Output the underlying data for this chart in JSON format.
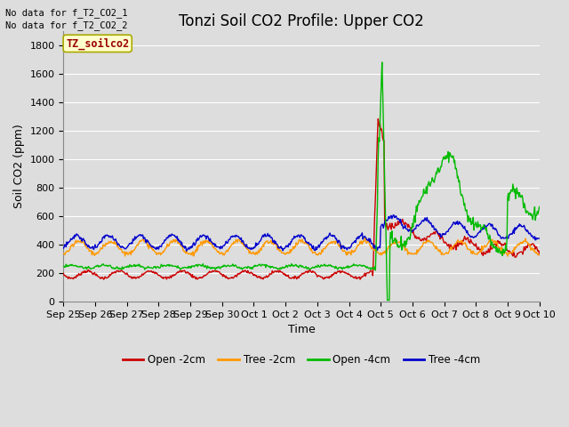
{
  "title": "Tonzi Soil CO2 Profile: Upper CO2",
  "xlabel": "Time",
  "ylabel": "Soil CO2 (ppm)",
  "ylim": [
    0,
    1900
  ],
  "yticks": [
    0,
    200,
    400,
    600,
    800,
    1000,
    1200,
    1400,
    1600,
    1800
  ],
  "no_data_text": [
    "No data for f_T2_CO2_1",
    "No data for f_T2_CO2_2"
  ],
  "legend_label": "TZ_soilco2",
  "legend_entries": [
    "Open -2cm",
    "Tree -2cm",
    "Open -4cm",
    "Tree -4cm"
  ],
  "legend_colors": [
    "#cc0000",
    "#ff9900",
    "#00bb00",
    "#0000cc"
  ],
  "bg_color": "#dddddd",
  "plot_bg_color": "#dddddd",
  "grid_color": "#ffffff",
  "title_fontsize": 12,
  "axis_label_fontsize": 9,
  "tick_label_fontsize": 8,
  "figsize": [
    6.4,
    4.8
  ],
  "dpi": 100
}
